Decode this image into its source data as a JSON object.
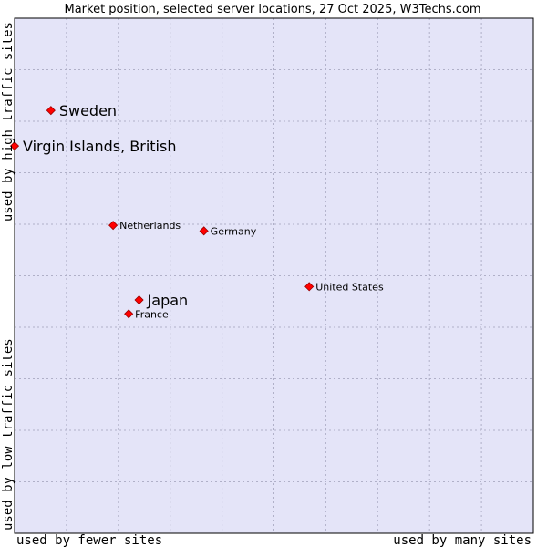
{
  "chart_data": {
    "type": "scatter",
    "title": "Market position, selected server locations, 27 Oct 2025, W3Techs.com",
    "xlabel_left": "used by fewer sites",
    "xlabel_right": "used by many sites",
    "ylabel_bottom": "used by low traffic sites",
    "ylabel_top": "used by high traffic sites",
    "xlim": [
      0,
      100
    ],
    "ylim": [
      0,
      100
    ],
    "grid": true,
    "colors": {
      "plot_bg": "#e4e4f8",
      "marker": "#ff0000",
      "marker_edge": "#990000",
      "grid": "#b0b0c8",
      "border": "#000000"
    },
    "points": [
      {
        "name": "Sweden",
        "x": 7.0,
        "y": 82.1,
        "highlight": true
      },
      {
        "name": "Virgin Islands, British",
        "x": 0.0,
        "y": 75.2,
        "highlight": true
      },
      {
        "name": "Netherlands",
        "x": 19.0,
        "y": 59.8,
        "highlight": false
      },
      {
        "name": "Germany",
        "x": 36.5,
        "y": 58.7,
        "highlight": false
      },
      {
        "name": "United States",
        "x": 56.8,
        "y": 47.9,
        "highlight": false
      },
      {
        "name": "Japan",
        "x": 24.0,
        "y": 45.3,
        "highlight": true
      },
      {
        "name": "France",
        "x": 22.0,
        "y": 42.6,
        "highlight": false
      }
    ]
  }
}
